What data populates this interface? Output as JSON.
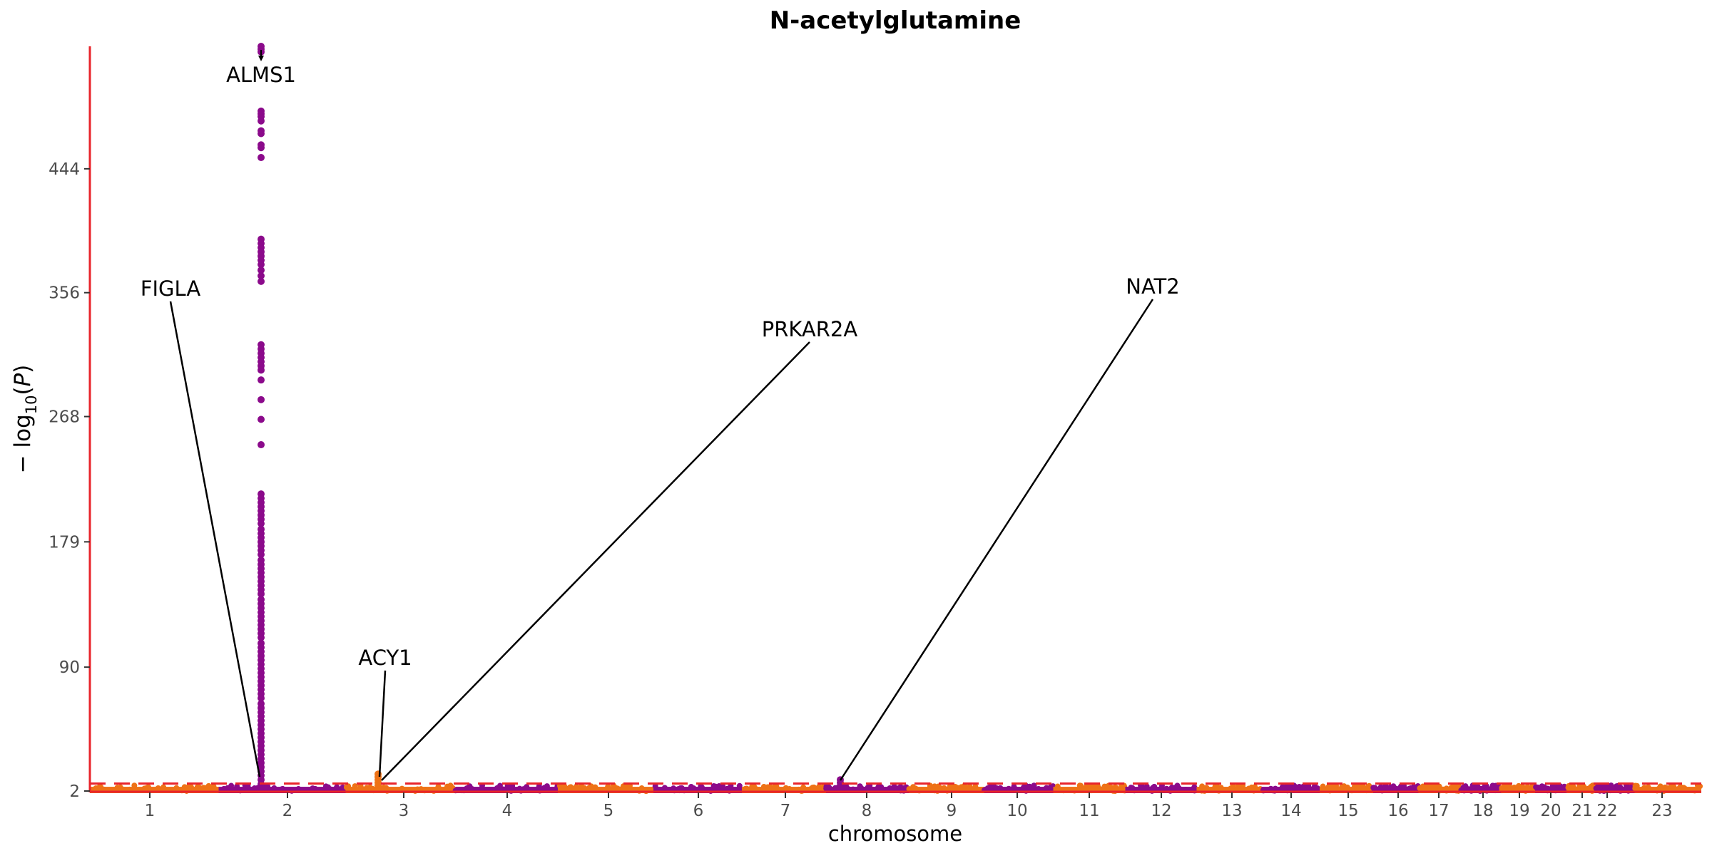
{
  "colors": {
    "odd_chromosome": "#ee7216",
    "even_chromosome": "#8b0a8b",
    "threshold_line": "#e8242b",
    "axis_line": "#e8242b",
    "annotation_line": "#000000"
  },
  "chart_data": {
    "type": "scatter",
    "title": "N-acetylglutamine",
    "xlabel": "chromosome",
    "ylabel": "−log10(P)",
    "y_ticks": [
      2,
      90,
      179,
      268,
      356,
      444
    ],
    "ylim": [
      2,
      531
    ],
    "significance_threshold": 7.3,
    "grid": false,
    "legend": "none",
    "chromosomes": [
      {
        "label": "1",
        "center": 1
      },
      {
        "label": "2",
        "center": 2
      },
      {
        "label": "3",
        "center": 3
      },
      {
        "label": "4",
        "center": 4
      },
      {
        "label": "5",
        "center": 5
      },
      {
        "label": "6",
        "center": 6
      },
      {
        "label": "7",
        "center": 7
      },
      {
        "label": "8",
        "center": 8
      },
      {
        "label": "9",
        "center": 9
      },
      {
        "label": "10",
        "center": 10
      },
      {
        "label": "11",
        "center": 11
      },
      {
        "label": "12",
        "center": 12
      },
      {
        "label": "13",
        "center": 13
      },
      {
        "label": "14",
        "center": 14
      },
      {
        "label": "15",
        "center": 15
      },
      {
        "label": "16",
        "center": 16
      },
      {
        "label": "17",
        "center": 17
      },
      {
        "label": "18",
        "center": 18
      },
      {
        "label": "19",
        "center": 19
      },
      {
        "label": "20",
        "center": 20
      },
      {
        "label": "21",
        "center": 21
      },
      {
        "label": "22",
        "center": 22
      },
      {
        "label": "23",
        "center": 23
      }
    ],
    "hits": [
      {
        "gene": "ALMS1",
        "chromosome": "2",
        "logp": 528
      },
      {
        "gene": "FIGLA",
        "chromosome": "2",
        "logp": 12
      },
      {
        "gene": "ACY1",
        "chromosome": "3",
        "logp": 14
      },
      {
        "gene": "PRKAR2A",
        "chromosome": "3",
        "logp": 14
      },
      {
        "gene": "NAT2",
        "chromosome": "8",
        "logp": 10
      }
    ],
    "peak_columns": [
      {
        "chromosome": "2",
        "values": [
          531,
          529,
          527,
          485,
          483,
          481,
          478,
          471,
          469,
          461,
          459,
          452,
          394,
          391,
          388,
          385,
          382,
          379,
          376,
          372,
          368,
          364,
          319,
          316,
          313,
          310,
          307,
          304,
          301,
          294,
          280,
          266,
          248,
          213,
          210,
          207,
          204,
          201,
          198,
          195,
          192,
          188,
          185,
          182,
          179,
          176,
          173,
          170,
          166,
          163,
          160,
          157,
          154,
          151,
          148,
          145,
          142,
          138,
          135,
          132,
          129,
          126,
          123,
          120,
          117,
          114,
          111,
          107,
          104,
          101,
          98,
          95,
          92,
          89,
          86,
          83,
          80,
          77,
          74,
          71,
          68,
          64,
          61,
          58,
          55,
          52,
          49,
          46,
          43,
          40,
          37,
          34,
          31,
          28,
          25,
          22,
          19,
          16,
          13,
          10,
          7,
          5
        ]
      },
      {
        "chromosome": "3",
        "values": [
          14,
          12,
          10,
          8,
          6
        ]
      },
      {
        "chromosome": "8",
        "values": [
          10,
          8,
          6,
          4
        ]
      }
    ]
  }
}
